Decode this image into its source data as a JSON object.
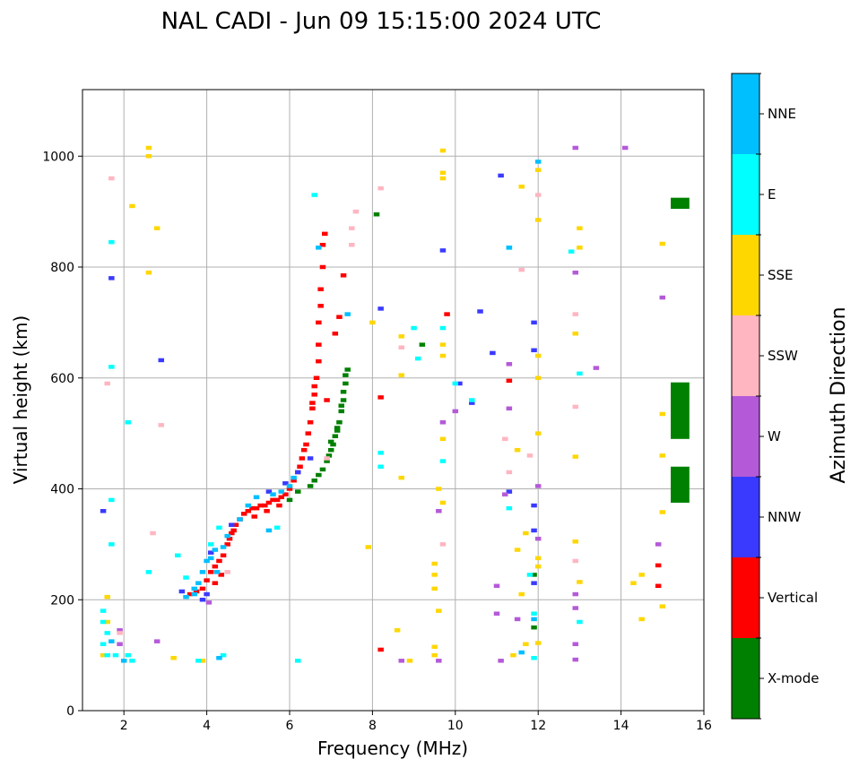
{
  "chart_data": {
    "type": "scatter",
    "title": "NAL CADI - Jun 09 15:15:00 2024 UTC",
    "xlabel": "Frequency (MHz)",
    "ylabel": "Virtual height (km)",
    "xlim": [
      1,
      16
    ],
    "ylim": [
      0,
      1120
    ],
    "xticks": [
      2,
      4,
      6,
      8,
      10,
      12,
      14,
      16
    ],
    "yticks": [
      0,
      200,
      400,
      600,
      800,
      1000
    ],
    "grid": true,
    "colorbar": {
      "title": "Azimuth Direction",
      "categories": [
        {
          "name": "X-mode",
          "color": "#008000"
        },
        {
          "name": "Vertical",
          "color": "#ff0000"
        },
        {
          "name": "NNW",
          "color": "#3a3aff"
        },
        {
          "name": "W",
          "color": "#b45ad8"
        },
        {
          "name": "SSW",
          "color": "#ffb6c1"
        },
        {
          "name": "SSE",
          "color": "#ffd700"
        },
        {
          "name": "E",
          "color": "#00ffff"
        },
        {
          "name": "NNE",
          "color": "#00bfff"
        }
      ]
    },
    "series": [
      {
        "name": "Vertical",
        "color": "#ff0000",
        "points": [
          [
            3.6,
            210
          ],
          [
            3.75,
            215
          ],
          [
            3.9,
            220
          ],
          [
            4.0,
            235
          ],
          [
            4.1,
            250
          ],
          [
            4.2,
            260
          ],
          [
            4.3,
            270
          ],
          [
            4.4,
            280
          ],
          [
            4.5,
            300
          ],
          [
            4.55,
            310
          ],
          [
            4.6,
            320
          ],
          [
            4.7,
            335
          ],
          [
            4.8,
            345
          ],
          [
            4.9,
            355
          ],
          [
            5.0,
            360
          ],
          [
            5.1,
            365
          ],
          [
            5.2,
            365
          ],
          [
            5.3,
            370
          ],
          [
            5.4,
            370
          ],
          [
            5.5,
            375
          ],
          [
            5.6,
            380
          ],
          [
            5.7,
            380
          ],
          [
            5.8,
            385
          ],
          [
            5.9,
            390
          ],
          [
            6.0,
            400
          ],
          [
            6.1,
            415
          ],
          [
            6.2,
            430
          ],
          [
            6.3,
            455
          ],
          [
            6.4,
            480
          ],
          [
            6.45,
            500
          ],
          [
            6.5,
            520
          ],
          [
            6.55,
            545
          ],
          [
            6.6,
            570
          ],
          [
            6.65,
            600
          ],
          [
            6.7,
            630
          ],
          [
            6.7,
            660
          ],
          [
            6.7,
            700
          ],
          [
            6.75,
            730
          ],
          [
            6.75,
            760
          ],
          [
            6.8,
            800
          ],
          [
            6.8,
            840
          ],
          [
            6.85,
            860
          ],
          [
            4.2,
            230
          ],
          [
            4.35,
            245
          ],
          [
            4.65,
            325
          ],
          [
            5.15,
            350
          ],
          [
            5.45,
            360
          ],
          [
            5.75,
            370
          ],
          [
            6.25,
            440
          ],
          [
            6.35,
            470
          ],
          [
            6.55,
            555
          ],
          [
            6.6,
            585
          ],
          [
            7.3,
            785
          ],
          [
            7.1,
            680
          ],
          [
            7.2,
            710
          ],
          [
            6.9,
            560
          ],
          [
            8.2,
            565
          ],
          [
            8.2,
            110
          ],
          [
            9.8,
            715
          ],
          [
            11.3,
            595
          ],
          [
            14.9,
            262
          ],
          [
            14.9,
            225
          ]
        ]
      },
      {
        "name": "X-mode",
        "color": "#008000",
        "points": [
          [
            6.0,
            380
          ],
          [
            6.2,
            395
          ],
          [
            6.5,
            405
          ],
          [
            6.6,
            415
          ],
          [
            6.7,
            425
          ],
          [
            6.8,
            435
          ],
          [
            6.9,
            450
          ],
          [
            7.0,
            470
          ],
          [
            7.05,
            480
          ],
          [
            7.1,
            495
          ],
          [
            7.15,
            505
          ],
          [
            7.2,
            520
          ],
          [
            7.25,
            540
          ],
          [
            7.3,
            560
          ],
          [
            7.3,
            575
          ],
          [
            7.35,
            590
          ],
          [
            7.35,
            605
          ],
          [
            7.4,
            615
          ],
          [
            6.95,
            460
          ],
          [
            7.0,
            485
          ],
          [
            7.15,
            510
          ],
          [
            7.25,
            550
          ],
          [
            9.2,
            660
          ],
          [
            8.1,
            895
          ],
          [
            11.9,
            245
          ],
          [
            11.9,
            150
          ]
        ]
      },
      {
        "name": "NNW",
        "color": "#3a3aff",
        "points": [
          [
            3.4,
            215
          ],
          [
            3.9,
            200
          ],
          [
            4.0,
            210
          ],
          [
            4.1,
            285
          ],
          [
            4.6,
            335
          ],
          [
            5.5,
            395
          ],
          [
            5.9,
            410
          ],
          [
            6.2,
            430
          ],
          [
            6.5,
            455
          ],
          [
            10.1,
            590
          ],
          [
            10.4,
            555
          ],
          [
            10.6,
            720
          ],
          [
            10.9,
            645
          ],
          [
            11.1,
            965
          ],
          [
            11.3,
            395
          ],
          [
            11.9,
            700
          ],
          [
            11.9,
            650
          ],
          [
            11.9,
            370
          ],
          [
            11.9,
            325
          ],
          [
            11.9,
            230
          ],
          [
            9.7,
            830
          ],
          [
            8.2,
            725
          ],
          [
            2.9,
            632
          ],
          [
            1.5,
            360
          ],
          [
            1.7,
            780
          ]
        ]
      },
      {
        "name": "W",
        "color": "#b45ad8",
        "points": [
          [
            11.2,
            390
          ],
          [
            11.3,
            545
          ],
          [
            11.3,
            625
          ],
          [
            11.0,
            225
          ],
          [
            11.0,
            175
          ],
          [
            11.1,
            90
          ],
          [
            11.5,
            165
          ],
          [
            12.0,
            310
          ],
          [
            12.0,
            405
          ],
          [
            12.9,
            1015
          ],
          [
            12.9,
            790
          ],
          [
            12.9,
            210
          ],
          [
            12.9,
            185
          ],
          [
            12.9,
            120
          ],
          [
            12.9,
            92
          ],
          [
            13.4,
            618
          ],
          [
            14.1,
            1015
          ],
          [
            14.9,
            300
          ],
          [
            15.0,
            745
          ],
          [
            9.6,
            360
          ],
          [
            9.7,
            520
          ],
          [
            10.0,
            540
          ],
          [
            8.7,
            90
          ],
          [
            9.6,
            90
          ],
          [
            1.9,
            145
          ],
          [
            1.9,
            120
          ],
          [
            2.8,
            125
          ],
          [
            4.05,
            195
          ]
        ]
      },
      {
        "name": "SSW",
        "color": "#ffb6c1",
        "points": [
          [
            11.2,
            490
          ],
          [
            11.3,
            430
          ],
          [
            11.6,
            795
          ],
          [
            12.9,
            715
          ],
          [
            12.9,
            548
          ],
          [
            12.9,
            270
          ],
          [
            11.8,
            460
          ],
          [
            8.2,
            942
          ],
          [
            7.5,
            870
          ],
          [
            7.5,
            840
          ],
          [
            7.6,
            900
          ],
          [
            8.7,
            655
          ],
          [
            9.7,
            300
          ],
          [
            1.7,
            960
          ],
          [
            1.6,
            590
          ],
          [
            1.9,
            140
          ],
          [
            2.9,
            515
          ],
          [
            2.7,
            320
          ],
          [
            4.5,
            250
          ],
          [
            6.9,
            455
          ],
          [
            12.0,
            930
          ]
        ]
      },
      {
        "name": "SSE",
        "color": "#ffd700",
        "points": [
          [
            9.7,
            1010
          ],
          [
            9.7,
            970
          ],
          [
            9.7,
            960
          ],
          [
            9.7,
            660
          ],
          [
            9.7,
            640
          ],
          [
            9.7,
            490
          ],
          [
            9.6,
            400
          ],
          [
            9.7,
            375
          ],
          [
            9.5,
            265
          ],
          [
            9.5,
            245
          ],
          [
            9.5,
            220
          ],
          [
            9.5,
            115
          ],
          [
            9.5,
            100
          ],
          [
            8.0,
            700
          ],
          [
            8.7,
            675
          ],
          [
            8.7,
            605
          ],
          [
            8.7,
            420
          ],
          [
            8.6,
            145
          ],
          [
            8.9,
            90
          ],
          [
            11.6,
            945
          ],
          [
            11.5,
            470
          ],
          [
            11.7,
            320
          ],
          [
            11.5,
            290
          ],
          [
            11.6,
            210
          ],
          [
            11.7,
            120
          ],
          [
            11.4,
            100
          ],
          [
            12.0,
            975
          ],
          [
            12.0,
            885
          ],
          [
            12.0,
            640
          ],
          [
            12.0,
            600
          ],
          [
            12.0,
            500
          ],
          [
            12.0,
            275
          ],
          [
            12.0,
            260
          ],
          [
            12.0,
            122
          ],
          [
            12.9,
            680
          ],
          [
            12.9,
            458
          ],
          [
            12.9,
            305
          ],
          [
            13.0,
            232
          ],
          [
            13.0,
            870
          ],
          [
            13.0,
            835
          ],
          [
            14.3,
            230
          ],
          [
            14.5,
            245
          ],
          [
            14.5,
            165
          ],
          [
            15.0,
            842
          ],
          [
            15.0,
            535
          ],
          [
            15.0,
            460
          ],
          [
            15.0,
            358
          ],
          [
            15.0,
            188
          ],
          [
            2.2,
            910
          ],
          [
            2.6,
            1015
          ],
          [
            2.6,
            1000
          ],
          [
            2.6,
            790
          ],
          [
            2.8,
            870
          ],
          [
            1.6,
            205
          ],
          [
            1.6,
            160
          ],
          [
            1.5,
            100
          ],
          [
            3.2,
            95
          ],
          [
            3.9,
            90
          ],
          [
            7.9,
            295
          ],
          [
            9.6,
            180
          ]
        ]
      },
      {
        "name": "E",
        "color": "#00ffff",
        "points": [
          [
            1.5,
            180
          ],
          [
            1.5,
            160
          ],
          [
            1.6,
            140
          ],
          [
            1.5,
            120
          ],
          [
            1.6,
            100
          ],
          [
            1.8,
            100
          ],
          [
            2.1,
            100
          ],
          [
            2.2,
            90
          ],
          [
            1.7,
            380
          ],
          [
            1.7,
            300
          ],
          [
            1.7,
            620
          ],
          [
            1.7,
            845
          ],
          [
            2.1,
            520
          ],
          [
            2.6,
            250
          ],
          [
            3.3,
            280
          ],
          [
            3.8,
            90
          ],
          [
            4.4,
            100
          ],
          [
            4.1,
            300
          ],
          [
            4.3,
            330
          ],
          [
            6.2,
            90
          ],
          [
            6.6,
            930
          ],
          [
            8.2,
            465
          ],
          [
            8.2,
            440
          ],
          [
            9.0,
            690
          ],
          [
            9.1,
            635
          ],
          [
            9.7,
            690
          ],
          [
            9.7,
            450
          ],
          [
            10.0,
            590
          ],
          [
            10.4,
            560
          ],
          [
            11.3,
            835
          ],
          [
            11.3,
            365
          ],
          [
            11.9,
            95
          ],
          [
            11.8,
            245
          ],
          [
            11.9,
            175
          ],
          [
            12.8,
            828
          ],
          [
            13.0,
            608
          ],
          [
            13.0,
            160
          ],
          [
            3.5,
            240
          ],
          [
            5.7,
            330
          ]
        ]
      },
      {
        "name": "NNE",
        "color": "#00bfff",
        "points": [
          [
            3.5,
            205
          ],
          [
            3.7,
            220
          ],
          [
            3.8,
            230
          ],
          [
            3.9,
            250
          ],
          [
            4.0,
            270
          ],
          [
            4.1,
            275
          ],
          [
            4.2,
            290
          ],
          [
            4.4,
            295
          ],
          [
            4.5,
            315
          ],
          [
            4.8,
            345
          ],
          [
            5.0,
            370
          ],
          [
            5.2,
            385
          ],
          [
            5.6,
            390
          ],
          [
            5.8,
            395
          ],
          [
            6.0,
            405
          ],
          [
            6.1,
            420
          ],
          [
            6.7,
            835
          ],
          [
            7.4,
            715
          ],
          [
            11.3,
            835
          ],
          [
            12.0,
            990
          ],
          [
            11.9,
            165
          ],
          [
            11.6,
            105
          ],
          [
            1.7,
            125
          ],
          [
            2.0,
            90
          ],
          [
            4.3,
            95
          ],
          [
            5.5,
            325
          ],
          [
            3.7,
            210
          ],
          [
            4.25,
            250
          ]
        ]
      }
    ],
    "blocks": [
      {
        "name": "X-mode",
        "color": "#008000",
        "x": [
          15.2,
          15.65
        ],
        "y": [
          490,
          592
        ]
      },
      {
        "name": "X-mode",
        "color": "#008000",
        "x": [
          15.2,
          15.65
        ],
        "y": [
          375,
          440
        ]
      },
      {
        "name": "X-mode",
        "color": "#008000",
        "x": [
          15.2,
          15.65
        ],
        "y": [
          905,
          925
        ]
      }
    ]
  }
}
